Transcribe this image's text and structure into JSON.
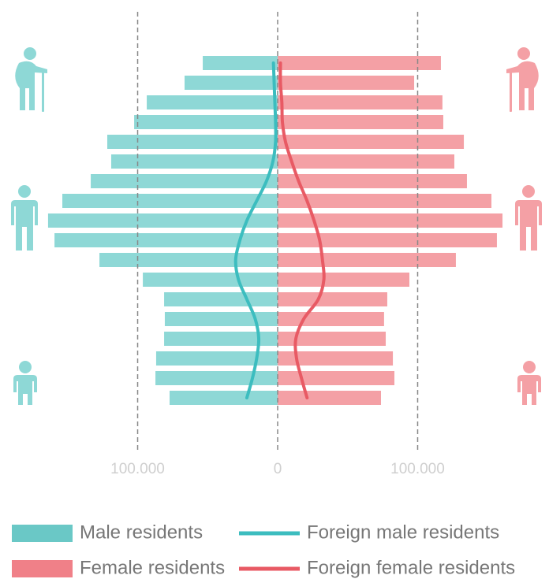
{
  "chart_data": {
    "type": "bar",
    "orientation": "horizontal",
    "categories": [
      null,
      null,
      null,
      null,
      null,
      null,
      null,
      null,
      null,
      null,
      null,
      null,
      null,
      null,
      null,
      null,
      null,
      null
    ],
    "xlim": [
      -175000,
      175000
    ],
    "xticks": [
      {
        "value": -100000,
        "label": "100.000"
      },
      0,
      {
        "value": 100000,
        "label": "100.000"
      }
    ],
    "grid": true,
    "series": [
      {
        "name": "Male residents",
        "type": "bar",
        "color": "#8ed8d6",
        "legend_color": "#6ac8c6",
        "values": [
          -53500,
          -66500,
          -93500,
          -102500,
          -121700,
          -118900,
          -133500,
          -153800,
          -164000,
          -159400,
          -127300,
          -96300,
          -81100,
          -80600,
          -81100,
          -86800,
          -87300,
          -77200
        ]
      },
      {
        "name": "Female residents",
        "type": "bar",
        "color": "#f4a0a5",
        "legend_color": "#f08088",
        "values": [
          116600,
          97500,
          117700,
          118300,
          133000,
          126200,
          135200,
          152700,
          160600,
          156600,
          127300,
          94100,
          78300,
          76000,
          77200,
          82300,
          83400,
          73800
        ]
      },
      {
        "name": "Foreign male residents",
        "type": "line",
        "color": "#3cbdbf",
        "values": [
          -3000,
          -2500,
          -2000,
          -1500,
          -1500,
          -3400,
          -8000,
          -15000,
          -22000,
          -27000,
          -30000,
          -28000,
          -22000,
          -16000,
          -13500,
          -15000,
          -18000,
          -22000
        ]
      },
      {
        "name": "Foreign female residents",
        "type": "line",
        "color": "#e85a64",
        "values": [
          2000,
          2000,
          3000,
          3400,
          5600,
          10000,
          15000,
          21000,
          26000,
          30000,
          32000,
          33000,
          29000,
          18600,
          13000,
          13500,
          17000,
          21000
        ]
      }
    ]
  }
}
